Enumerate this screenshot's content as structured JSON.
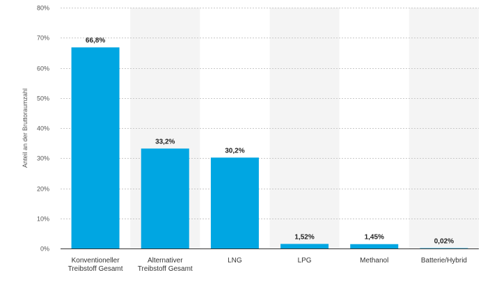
{
  "chart_data": {
    "type": "bar",
    "title": "",
    "xlabel": "",
    "ylabel": "Anteil an der Bruttoraumzahl",
    "ylim": [
      0,
      80
    ],
    "y_ticks": [
      0,
      10,
      20,
      30,
      40,
      50,
      60,
      70,
      80
    ],
    "y_tick_labels": [
      "0%",
      "10%",
      "20%",
      "30%",
      "40%",
      "50%",
      "60%",
      "70%",
      "80%"
    ],
    "categories": [
      [
        "Konventioneller",
        "Treibstoff Gesamt"
      ],
      [
        "Alternativer",
        "Treibstoff Gesamt"
      ],
      [
        "LNG"
      ],
      [
        "LPG"
      ],
      [
        "Methanol"
      ],
      [
        "Batterie/Hybrid"
      ]
    ],
    "values": [
      66.8,
      33.2,
      30.2,
      1.52,
      1.45,
      0.02
    ],
    "value_labels": [
      "66,8%",
      "33,2%",
      "30,2%",
      "1,52%",
      "1,45%",
      "0,02%"
    ],
    "bar_color": "#00a6e2",
    "band_color": "#f4f4f4",
    "grid": true
  }
}
